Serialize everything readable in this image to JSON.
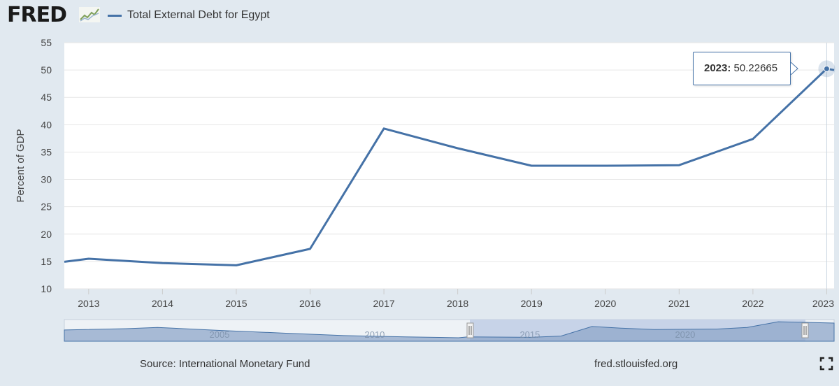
{
  "header": {
    "logo_text": "FRED",
    "legend_label": "Total External Debt for Egypt"
  },
  "tooltip": {
    "year": "2023:",
    "value": "50.22665"
  },
  "footer": {
    "source": "Source: International Monetary Fund",
    "site": "fred.stlouisfed.org"
  },
  "colors": {
    "series": "#4572a7",
    "background": "#e1e9f0",
    "plot": "#ffffff",
    "navigator": "#8fa7c9"
  },
  "chart_data": {
    "type": "line",
    "title": "",
    "xlabel": "",
    "ylabel": "Percent of GDP",
    "ylim": [
      10,
      55
    ],
    "yticks": [
      10,
      15,
      20,
      25,
      30,
      35,
      40,
      45,
      50,
      55
    ],
    "xticks": [
      "2013",
      "2014",
      "2015",
      "2016",
      "2017",
      "2018",
      "2019",
      "2020",
      "2021",
      "2022",
      "2023"
    ],
    "grid": true,
    "series": [
      {
        "name": "Total External Debt for Egypt",
        "x": [
          2012,
          2013,
          2014,
          2015,
          2016,
          2017,
          2018,
          2019,
          2020,
          2021,
          2022,
          2023,
          2024
        ],
        "values": [
          13.8,
          15.5,
          14.7,
          14.3,
          17.3,
          39.3,
          35.7,
          32.5,
          32.5,
          32.6,
          37.4,
          50.22665,
          47.9
        ]
      }
    ],
    "navigator_labels": [
      "2005",
      "2010",
      "2015",
      "2020"
    ]
  }
}
